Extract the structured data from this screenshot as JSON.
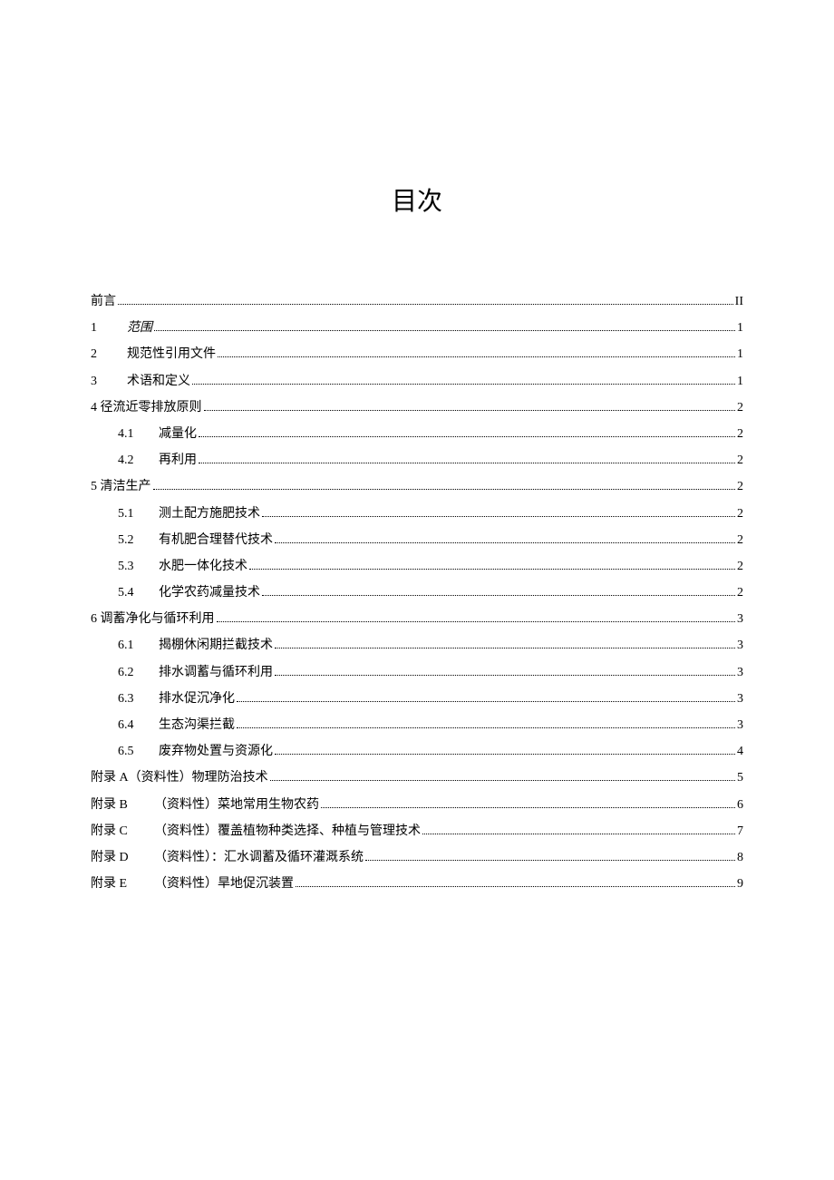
{
  "title": "目次",
  "entries": [
    {
      "type": "main",
      "label": "前言",
      "page": "II",
      "indent": 1,
      "num": ""
    },
    {
      "type": "main",
      "label": "范围",
      "page": "1",
      "indent": 1,
      "num": "1",
      "italic": true
    },
    {
      "type": "main",
      "label": "规范性引用文件",
      "page": "1",
      "indent": 1,
      "num": "2"
    },
    {
      "type": "main",
      "label": "术语和定义",
      "page": "1",
      "indent": 1,
      "num": "3"
    },
    {
      "type": "main",
      "label": "径流近零排放原则",
      "page": "2",
      "indent": 1,
      "num": "4",
      "nospace": true
    },
    {
      "type": "sub",
      "label": "减量化",
      "page": "2",
      "indent": 2,
      "num": "4.1"
    },
    {
      "type": "sub",
      "label": "再利用",
      "page": "2",
      "indent": 2,
      "num": "4.2"
    },
    {
      "type": "main",
      "label": "清洁生产",
      "page": "2",
      "indent": 1,
      "num": "5",
      "nospace": true
    },
    {
      "type": "sub",
      "label": "测土配方施肥技术",
      "page": "2",
      "indent": 2,
      "num": "5.1"
    },
    {
      "type": "sub",
      "label": "有机肥合理替代技术",
      "page": "2",
      "indent": 2,
      "num": "5.2"
    },
    {
      "type": "sub",
      "label": "水肥一体化技术",
      "page": "2",
      "indent": 2,
      "num": "5.3"
    },
    {
      "type": "sub",
      "label": "化学农药减量技术",
      "page": "2",
      "indent": 2,
      "num": "5.4"
    },
    {
      "type": "main",
      "label": "调蓄净化与循环利用",
      "page": "3",
      "indent": 1,
      "num": "6",
      "nospace": true
    },
    {
      "type": "sub",
      "label": "揭棚休闲期拦截技术",
      "page": "3",
      "indent": 2,
      "num": "6.1"
    },
    {
      "type": "sub",
      "label": "排水调蓄与循环利用",
      "page": "3",
      "indent": 2,
      "num": "6.2"
    },
    {
      "type": "sub",
      "label": "排水促沉净化",
      "page": "3",
      "indent": 2,
      "num": "6.3"
    },
    {
      "type": "sub",
      "label": "生态沟渠拦截",
      "page": "3",
      "indent": 2,
      "num": "6.4"
    },
    {
      "type": "sub",
      "label": "废弃物处置与资源化",
      "page": "4",
      "indent": 2,
      "num": "6.5"
    },
    {
      "type": "appendix",
      "label": "（资料性）物理防治技术",
      "page": "5",
      "indent": 1,
      "num": "附录 A",
      "nospace": true
    },
    {
      "type": "appendix",
      "label": "（资料性）菜地常用生物农药",
      "page": "6",
      "indent": 1,
      "num": "附录 B"
    },
    {
      "type": "appendix",
      "label": "（资料性）覆盖植物种类选择、种植与管理技术",
      "page": "7",
      "indent": 1,
      "num": "附录 C"
    },
    {
      "type": "appendix",
      "label": "（资料性）：汇水调蓄及循环灌溉系统",
      "page": "8",
      "indent": 1,
      "num": "附录 D"
    },
    {
      "type": "appendix",
      "label": "（资料性）旱地促沉装置",
      "page": "9",
      "indent": 1,
      "num": "附录 E"
    }
  ]
}
